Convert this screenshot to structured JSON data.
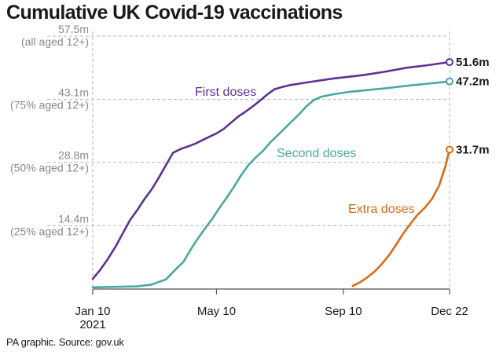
{
  "title": "Cumulative UK Covid-19 vaccinations",
  "source": "PA graphic. Source: gov.uk",
  "chart_data": {
    "type": "line",
    "ylim": [
      0,
      57.5
    ],
    "y_ticks": [
      {
        "value": 57.5,
        "label": "57.5m",
        "sublabel": "(all aged 12+)"
      },
      {
        "value": 43.1,
        "label": "43.1m",
        "sublabel": "(75% aged 12+)"
      },
      {
        "value": 28.8,
        "label": "28.8m",
        "sublabel": "(50% aged 12+)"
      },
      {
        "value": 14.4,
        "label": "14.4m",
        "sublabel": "(25% aged 12+)"
      }
    ],
    "x_ticks": [
      {
        "value": "2021-01-10",
        "label": "Jan 10",
        "sublabel": "2021"
      },
      {
        "value": "2021-05-10",
        "label": "May 10",
        "sublabel": ""
      },
      {
        "value": "2021-09-10",
        "label": "Sep 10",
        "sublabel": ""
      },
      {
        "value": "2021-12-22",
        "label": "Dec 22",
        "sublabel": ""
      }
    ],
    "xlim": [
      "2021-01-10",
      "2021-12-22"
    ],
    "grid": true,
    "series": [
      {
        "name": "First doses",
        "color": "#5c3291",
        "end_label": "51.6m",
        "points": [
          [
            "2021-01-10",
            2.3
          ],
          [
            "2021-01-17",
            4.3
          ],
          [
            "2021-01-24",
            6.6
          ],
          [
            "2021-02-01",
            9.6
          ],
          [
            "2021-02-08",
            12.6
          ],
          [
            "2021-02-15",
            15.6
          ],
          [
            "2021-02-22",
            17.9
          ],
          [
            "2021-03-01",
            20.4
          ],
          [
            "2021-03-08",
            22.6
          ],
          [
            "2021-03-15",
            25.3
          ],
          [
            "2021-03-22",
            28.2
          ],
          [
            "2021-03-29",
            31.0
          ],
          [
            "2021-04-05",
            31.8
          ],
          [
            "2021-04-12",
            32.4
          ],
          [
            "2021-04-19",
            33.0
          ],
          [
            "2021-04-26",
            33.8
          ],
          [
            "2021-05-03",
            34.6
          ],
          [
            "2021-05-10",
            35.4
          ],
          [
            "2021-05-17",
            36.4
          ],
          [
            "2021-05-24",
            37.8
          ],
          [
            "2021-05-31",
            39.2
          ],
          [
            "2021-06-07",
            40.3
          ],
          [
            "2021-06-14",
            41.5
          ],
          [
            "2021-06-21",
            42.8
          ],
          [
            "2021-06-28",
            44.2
          ],
          [
            "2021-07-05",
            45.4
          ],
          [
            "2021-07-12",
            45.9
          ],
          [
            "2021-07-19",
            46.3
          ],
          [
            "2021-08-01",
            46.8
          ],
          [
            "2021-08-15",
            47.3
          ],
          [
            "2021-09-01",
            47.9
          ],
          [
            "2021-09-10",
            48.1
          ],
          [
            "2021-10-01",
            48.7
          ],
          [
            "2021-10-20",
            49.4
          ],
          [
            "2021-11-10",
            50.3
          ],
          [
            "2021-12-01",
            50.9
          ],
          [
            "2021-12-22",
            51.6
          ]
        ]
      },
      {
        "name": "Second doses",
        "color": "#4aa8a0",
        "end_label": "47.2m",
        "points": [
          [
            "2021-01-10",
            0.4
          ],
          [
            "2021-02-01",
            0.5
          ],
          [
            "2021-02-22",
            0.6
          ],
          [
            "2021-03-08",
            1.0
          ],
          [
            "2021-03-22",
            2.2
          ],
          [
            "2021-04-01",
            4.6
          ],
          [
            "2021-04-08",
            6.2
          ],
          [
            "2021-04-15",
            9.0
          ],
          [
            "2021-04-22",
            11.5
          ],
          [
            "2021-04-29",
            13.8
          ],
          [
            "2021-05-06",
            16.0
          ],
          [
            "2021-05-13",
            18.5
          ],
          [
            "2021-05-20",
            20.8
          ],
          [
            "2021-05-27",
            23.3
          ],
          [
            "2021-06-03",
            25.9
          ],
          [
            "2021-06-10",
            28.2
          ],
          [
            "2021-06-17",
            29.9
          ],
          [
            "2021-06-24",
            31.4
          ],
          [
            "2021-07-01",
            33.3
          ],
          [
            "2021-07-08",
            34.9
          ],
          [
            "2021-07-15",
            36.5
          ],
          [
            "2021-07-22",
            38.1
          ],
          [
            "2021-07-29",
            39.7
          ],
          [
            "2021-08-05",
            41.5
          ],
          [
            "2021-08-12",
            42.9
          ],
          [
            "2021-08-19",
            43.7
          ],
          [
            "2021-09-01",
            44.3
          ],
          [
            "2021-09-15",
            44.8
          ],
          [
            "2021-10-01",
            45.2
          ],
          [
            "2021-10-20",
            45.6
          ],
          [
            "2021-11-10",
            46.2
          ],
          [
            "2021-12-01",
            46.7
          ],
          [
            "2021-12-22",
            47.2
          ]
        ]
      },
      {
        "name": "Extra doses",
        "color": "#d96b16",
        "end_label": "31.7m",
        "points": [
          [
            "2021-09-19",
            0.7
          ],
          [
            "2021-09-26",
            1.5
          ],
          [
            "2021-10-03",
            2.6
          ],
          [
            "2021-10-10",
            3.9
          ],
          [
            "2021-10-17",
            5.6
          ],
          [
            "2021-10-24",
            7.6
          ],
          [
            "2021-10-31",
            10.0
          ],
          [
            "2021-11-07",
            12.6
          ],
          [
            "2021-11-14",
            14.8
          ],
          [
            "2021-11-21",
            16.9
          ],
          [
            "2021-11-28",
            18.5
          ],
          [
            "2021-12-05",
            20.5
          ],
          [
            "2021-12-12",
            23.6
          ],
          [
            "2021-12-18",
            28.0
          ],
          [
            "2021-12-22",
            31.7
          ]
        ]
      }
    ]
  }
}
